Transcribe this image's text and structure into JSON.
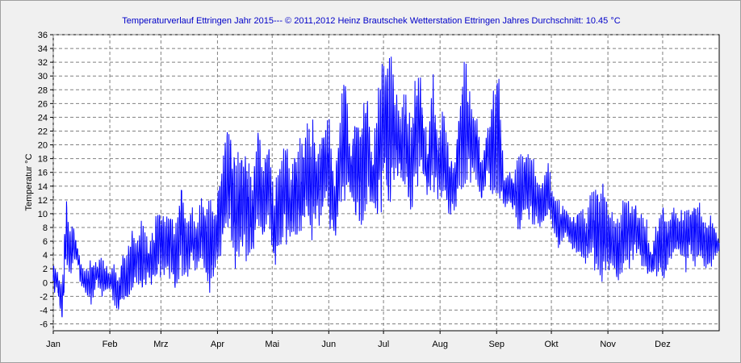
{
  "chart_data": {
    "type": "line",
    "title": "Temperaturverlauf Ettringen Jahr 2015--- © 2011,2012 Heinz Brautschek Wetterstation Ettringen Jahres Durchschnitt: 10.45 °C",
    "xlabel": "",
    "ylabel": "Temperatur °C",
    "ylim": [
      -7,
      36
    ],
    "yticks": [
      -6,
      -4,
      -2,
      0,
      2,
      4,
      6,
      8,
      10,
      12,
      14,
      16,
      18,
      20,
      22,
      24,
      26,
      28,
      30,
      32,
      34,
      36
    ],
    "xlim": [
      0,
      365
    ],
    "xticks": [
      {
        "label": "Jan",
        "day": 0
      },
      {
        "label": "Feb",
        "day": 31
      },
      {
        "label": "Mrz",
        "day": 59
      },
      {
        "label": "Apr",
        "day": 90
      },
      {
        "label": "Mai",
        "day": 120
      },
      {
        "label": "Jun",
        "day": 151
      },
      {
        "label": "Jul",
        "day": 181
      },
      {
        "label": "Aug",
        "day": 212
      },
      {
        "label": "Sep",
        "day": 243
      },
      {
        "label": "Okt",
        "day": 273
      },
      {
        "label": "Nov",
        "day": 304
      },
      {
        "label": "Dez",
        "day": 334
      }
    ],
    "grid": true,
    "line_color": "#0000ff",
    "series": [
      {
        "name": "",
        "x_unit": "day of year",
        "x": [
          0,
          2,
          5,
          7,
          9,
          11,
          13,
          15,
          18,
          21,
          24,
          27,
          30,
          33,
          36,
          38,
          40,
          43,
          46,
          49,
          52,
          55,
          58,
          61,
          64,
          67,
          70,
          73,
          76,
          79,
          82,
          85,
          88,
          91,
          94,
          97,
          100,
          103,
          106,
          109,
          112,
          115,
          118,
          121,
          124,
          127,
          130,
          133,
          136,
          139,
          142,
          145,
          148,
          151,
          154,
          157,
          160,
          163,
          166,
          169,
          172,
          175,
          178,
          181,
          184,
          187,
          190,
          193,
          196,
          199,
          202,
          205,
          208,
          211,
          214,
          217,
          220,
          223,
          226,
          229,
          232,
          235,
          238,
          241,
          244,
          247,
          250,
          253,
          256,
          259,
          262,
          265,
          268,
          271,
          274,
          277,
          280,
          283,
          286,
          289,
          292,
          295,
          298,
          301,
          304,
          307,
          310,
          313,
          316,
          319,
          322,
          325,
          328,
          331,
          334,
          337,
          340,
          343,
          346,
          349,
          352,
          355,
          358,
          361,
          364
        ],
        "min": [
          -2,
          -1,
          -6.5,
          1,
          0,
          2,
          3,
          -1,
          -2,
          -4,
          0,
          -3,
          -1,
          -3,
          -5,
          -3,
          -4,
          -2,
          0,
          -2,
          0,
          -1,
          1,
          0,
          0,
          -2,
          1,
          0,
          2,
          1,
          2,
          -2,
          0,
          2,
          4,
          6,
          0,
          4,
          3,
          2,
          6,
          4,
          8,
          0,
          3,
          6,
          4,
          5,
          4,
          7,
          6,
          8,
          9,
          8,
          6,
          9,
          10,
          11,
          8,
          7,
          10,
          10,
          8,
          11,
          10,
          14,
          12,
          13,
          8,
          12,
          15,
          10,
          13,
          12,
          11,
          9,
          10,
          14,
          12,
          13,
          13,
          10,
          15,
          9,
          12,
          11,
          10,
          9,
          6,
          9,
          7,
          8,
          7,
          9,
          7,
          4,
          6,
          5,
          4,
          3,
          2,
          2,
          0,
          -1,
          0,
          1,
          -1,
          2,
          2,
          4,
          2,
          0,
          1,
          0,
          -1,
          2,
          4,
          3,
          1,
          3,
          2,
          2,
          1,
          2,
          4
        ],
        "max": [
          3,
          2,
          0,
          13,
          8,
          9,
          6,
          3,
          2,
          4,
          3,
          4,
          2,
          3,
          1,
          5,
          4,
          8,
          7,
          10,
          6,
          8,
          12,
          10,
          12,
          8,
          16,
          10,
          11,
          10,
          13,
          13,
          11,
          16,
          23,
          25,
          18,
          21,
          20,
          16,
          24,
          18,
          23,
          13,
          20,
          22,
          17,
          21,
          21,
          24,
          24,
          20,
          23,
          26,
          15,
          25,
          32,
          20,
          27,
          24,
          29,
          18,
          30,
          34,
          36,
          31,
          26,
          30,
          23,
          34,
          29,
          21,
          31,
          22,
          26,
          19,
          18,
          28,
          34,
          27,
          26,
          19,
          23,
          30,
          32,
          15,
          17,
          16,
          21,
          20,
          20,
          16,
          16,
          18,
          14,
          12,
          12,
          10,
          10,
          12,
          10,
          14,
          14,
          17,
          12,
          10,
          10,
          13,
          12,
          12,
          10,
          10,
          4,
          11,
          12,
          10,
          12,
          10,
          13,
          11,
          13,
          12,
          9,
          10,
          7
        ]
      }
    ]
  }
}
